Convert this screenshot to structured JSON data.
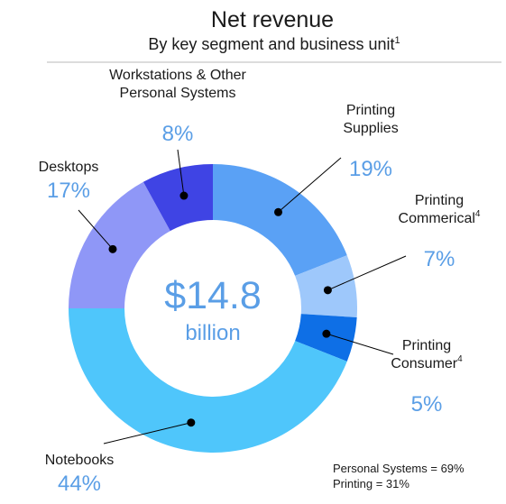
{
  "chart_data": {
    "type": "pie",
    "title": "Net revenue",
    "subtitle": "By key segment and business unit",
    "subtitle_superscript": "1",
    "center": {
      "value": "$14.8",
      "unit": "billion"
    },
    "segments": [
      {
        "label": "Printing\nSupplies",
        "superscript": "",
        "value": 19,
        "display": "19%",
        "color": "#5aa1f5"
      },
      {
        "label": "Printing\nCommerical",
        "superscript": "4",
        "value": 7,
        "display": "7%",
        "color": "#9ec8fb"
      },
      {
        "label": "Printing\nConsumer",
        "superscript": "4",
        "value": 5,
        "display": "5%",
        "color": "#0e6fe6"
      },
      {
        "label": "Notebooks",
        "superscript": "",
        "value": 44,
        "display": "44%",
        "color": "#4fc6fb"
      },
      {
        "label": "Desktops",
        "superscript": "",
        "value": 17,
        "display": "17%",
        "color": "#8f97f7"
      },
      {
        "label": "Workstations & Other\nPersonal Systems",
        "superscript": "",
        "value": 8,
        "display": "8%",
        "color": "#3f44e4"
      }
    ],
    "footnote": [
      "Personal Systems = 69%",
      "Printing = 31%"
    ]
  },
  "colors": {
    "value_text": "#5a9ee6",
    "line": "#000000",
    "rule": "#b8b8b8"
  }
}
